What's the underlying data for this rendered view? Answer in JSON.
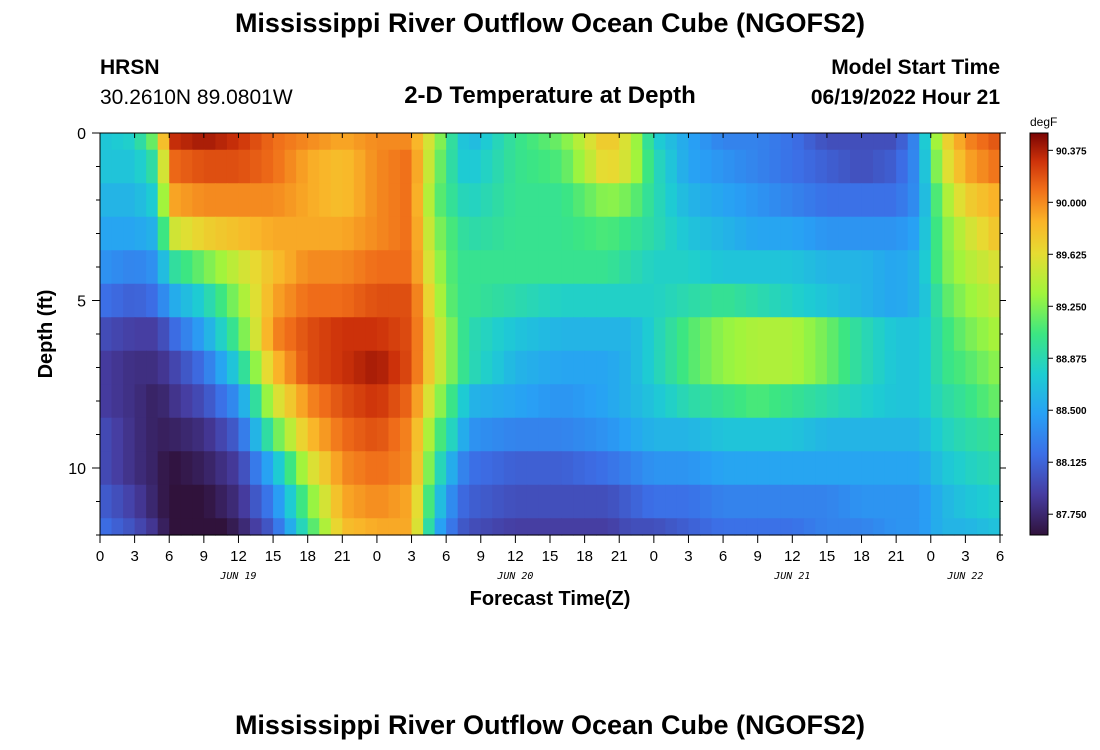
{
  "header": {
    "title_top": "Mississippi River Outflow Ocean Cube (NGOFS2)",
    "title_bottom": "Mississippi River Outflow Ocean Cube (NGOFS2)",
    "station": "HRSN",
    "coords": "30.2610N  89.0801W",
    "plot_title": "2-D Temperature at Depth",
    "model_start_label": "Model Start Time",
    "model_start_value": "06/19/2022 Hour 21"
  },
  "chart_data": {
    "type": "heatmap",
    "xlabel": "Forecast Time(Z)",
    "ylabel": "Depth (ft)",
    "yticks": [
      "0",
      "5",
      "10"
    ],
    "ylim": [
      0,
      12
    ],
    "x_tick_labels": [
      "0",
      "3",
      "6",
      "9",
      "12",
      "15",
      "18",
      "21",
      "0",
      "3",
      "6",
      "9",
      "12",
      "15",
      "18",
      "21",
      "0",
      "3",
      "6",
      "9",
      "12",
      "15",
      "18",
      "21",
      "0",
      "3",
      "6"
    ],
    "date_labels": [
      {
        "label": "JUN 19",
        "hour": 12
      },
      {
        "label": "JUN 20",
        "hour": 36
      },
      {
        "label": "JUN 21",
        "hour": 60
      },
      {
        "label": "JUN 22",
        "hour": 75
      }
    ],
    "x_range_hours": [
      0,
      78
    ],
    "colorbar": {
      "unit": "degF",
      "labels": [
        "90.375",
        "90.000",
        "89.625",
        "89.250",
        "88.875",
        "88.500",
        "88.125",
        "87.750"
      ],
      "vmin": 87.6,
      "vmax": 90.5
    },
    "depths_ft": [
      0,
      1,
      2,
      3,
      4,
      5,
      6,
      7,
      8,
      9,
      10,
      11,
      12
    ],
    "time_keyframes_hours": [
      0,
      3,
      5,
      6,
      9,
      12,
      15,
      18,
      21,
      24,
      27,
      29,
      31,
      32,
      36,
      40,
      44,
      46,
      48,
      51,
      54,
      57,
      60,
      63,
      66,
      69,
      71,
      72,
      73,
      75,
      78
    ],
    "temperature_degF": [
      [
        88.7,
        88.8,
        89.3,
        90.3,
        90.4,
        90.3,
        90.1,
        90.0,
        89.9,
        90.0,
        90.0,
        89.4,
        88.8,
        88.6,
        89.0,
        89.2,
        89.8,
        89.5,
        88.8,
        88.5,
        88.3,
        88.3,
        88.2,
        88.0,
        88.0,
        88.0,
        88.4,
        89.1,
        89.6,
        90.0,
        90.2
      ],
      [
        88.7,
        88.7,
        89.0,
        90.1,
        90.2,
        90.2,
        90.1,
        89.9,
        89.8,
        90.0,
        90.1,
        89.3,
        88.8,
        88.7,
        89.0,
        89.1,
        89.7,
        89.5,
        88.9,
        88.5,
        88.4,
        88.3,
        88.2,
        88.1,
        88.0,
        88.1,
        88.4,
        89.0,
        89.5,
        89.9,
        90.1
      ],
      [
        88.6,
        88.6,
        88.8,
        89.9,
        90.0,
        90.0,
        90.0,
        89.9,
        89.8,
        90.0,
        90.1,
        89.2,
        88.9,
        88.8,
        89.0,
        89.0,
        89.3,
        89.2,
        88.9,
        88.6,
        88.5,
        88.4,
        88.3,
        88.2,
        88.2,
        88.2,
        88.4,
        88.9,
        89.3,
        89.7,
        89.9
      ],
      [
        88.5,
        88.5,
        88.6,
        89.5,
        89.7,
        89.8,
        89.9,
        89.9,
        89.9,
        90.0,
        90.1,
        89.3,
        89.0,
        88.9,
        89.0,
        89.0,
        89.1,
        89.0,
        88.9,
        88.7,
        88.6,
        88.5,
        88.5,
        88.4,
        88.4,
        88.4,
        88.5,
        88.9,
        89.2,
        89.5,
        89.8
      ],
      [
        88.4,
        88.3,
        88.4,
        88.9,
        89.2,
        89.5,
        89.8,
        90.0,
        90.0,
        90.1,
        90.1,
        89.4,
        89.0,
        89.0,
        89.0,
        89.0,
        89.0,
        88.9,
        88.8,
        88.8,
        88.7,
        88.7,
        88.7,
        88.6,
        88.6,
        88.5,
        88.6,
        88.9,
        89.2,
        89.4,
        89.6
      ],
      [
        88.2,
        88.1,
        88.2,
        88.5,
        88.8,
        89.3,
        89.9,
        90.1,
        90.1,
        90.2,
        90.2,
        89.5,
        89.0,
        89.0,
        88.9,
        88.8,
        88.8,
        88.8,
        88.8,
        88.9,
        89.0,
        88.9,
        88.8,
        88.7,
        88.6,
        88.5,
        88.6,
        88.8,
        89.1,
        89.3,
        89.5
      ],
      [
        88.0,
        87.9,
        87.9,
        88.1,
        88.5,
        89.1,
        90.0,
        90.2,
        90.3,
        90.3,
        90.2,
        89.6,
        89.1,
        88.9,
        88.7,
        88.6,
        88.6,
        88.6,
        88.8,
        89.1,
        89.3,
        89.4,
        89.4,
        89.2,
        88.9,
        88.7,
        88.7,
        88.8,
        89.0,
        89.2,
        89.4
      ],
      [
        87.9,
        87.8,
        87.8,
        87.9,
        88.2,
        88.8,
        89.8,
        90.2,
        90.3,
        90.4,
        90.2,
        89.6,
        89.1,
        88.9,
        88.6,
        88.5,
        88.5,
        88.6,
        88.8,
        89.1,
        89.3,
        89.4,
        89.4,
        89.2,
        88.9,
        88.7,
        88.7,
        88.8,
        89.0,
        89.1,
        89.3
      ],
      [
        87.9,
        87.8,
        87.7,
        87.8,
        88.0,
        88.4,
        89.5,
        90.0,
        90.2,
        90.3,
        90.1,
        89.4,
        88.9,
        88.6,
        88.5,
        88.4,
        88.5,
        88.6,
        88.7,
        88.9,
        89.0,
        89.1,
        89.0,
        88.9,
        88.8,
        88.7,
        88.7,
        88.8,
        88.9,
        89.0,
        89.2
      ],
      [
        88.0,
        87.8,
        87.7,
        87.7,
        87.8,
        88.1,
        89.1,
        89.8,
        90.1,
        90.2,
        90.0,
        89.2,
        88.7,
        88.4,
        88.3,
        88.3,
        88.4,
        88.5,
        88.6,
        88.6,
        88.7,
        88.7,
        88.7,
        88.6,
        88.6,
        88.6,
        88.6,
        88.7,
        88.8,
        88.9,
        89.0
      ],
      [
        88.0,
        87.8,
        87.7,
        87.6,
        87.7,
        87.9,
        88.6,
        89.5,
        90.0,
        90.1,
        90.0,
        89.0,
        88.4,
        88.2,
        88.1,
        88.1,
        88.2,
        88.3,
        88.4,
        88.4,
        88.5,
        88.5,
        88.5,
        88.5,
        88.5,
        88.5,
        88.5,
        88.6,
        88.7,
        88.8,
        88.9
      ],
      [
        88.1,
        87.9,
        87.7,
        87.6,
        87.6,
        87.8,
        88.3,
        89.2,
        89.9,
        90.0,
        89.9,
        88.8,
        88.2,
        88.1,
        88.0,
        88.0,
        88.0,
        88.1,
        88.2,
        88.2,
        88.3,
        88.3,
        88.3,
        88.3,
        88.4,
        88.4,
        88.4,
        88.5,
        88.6,
        88.7,
        88.8
      ],
      [
        88.2,
        88.0,
        87.8,
        87.6,
        87.5,
        87.7,
        88.1,
        89.0,
        89.8,
        89.9,
        89.9,
        88.6,
        88.1,
        88.0,
        87.9,
        87.9,
        87.9,
        88.0,
        88.0,
        88.1,
        88.2,
        88.2,
        88.2,
        88.3,
        88.3,
        88.4,
        88.4,
        88.5,
        88.6,
        88.6,
        88.7
      ]
    ]
  }
}
